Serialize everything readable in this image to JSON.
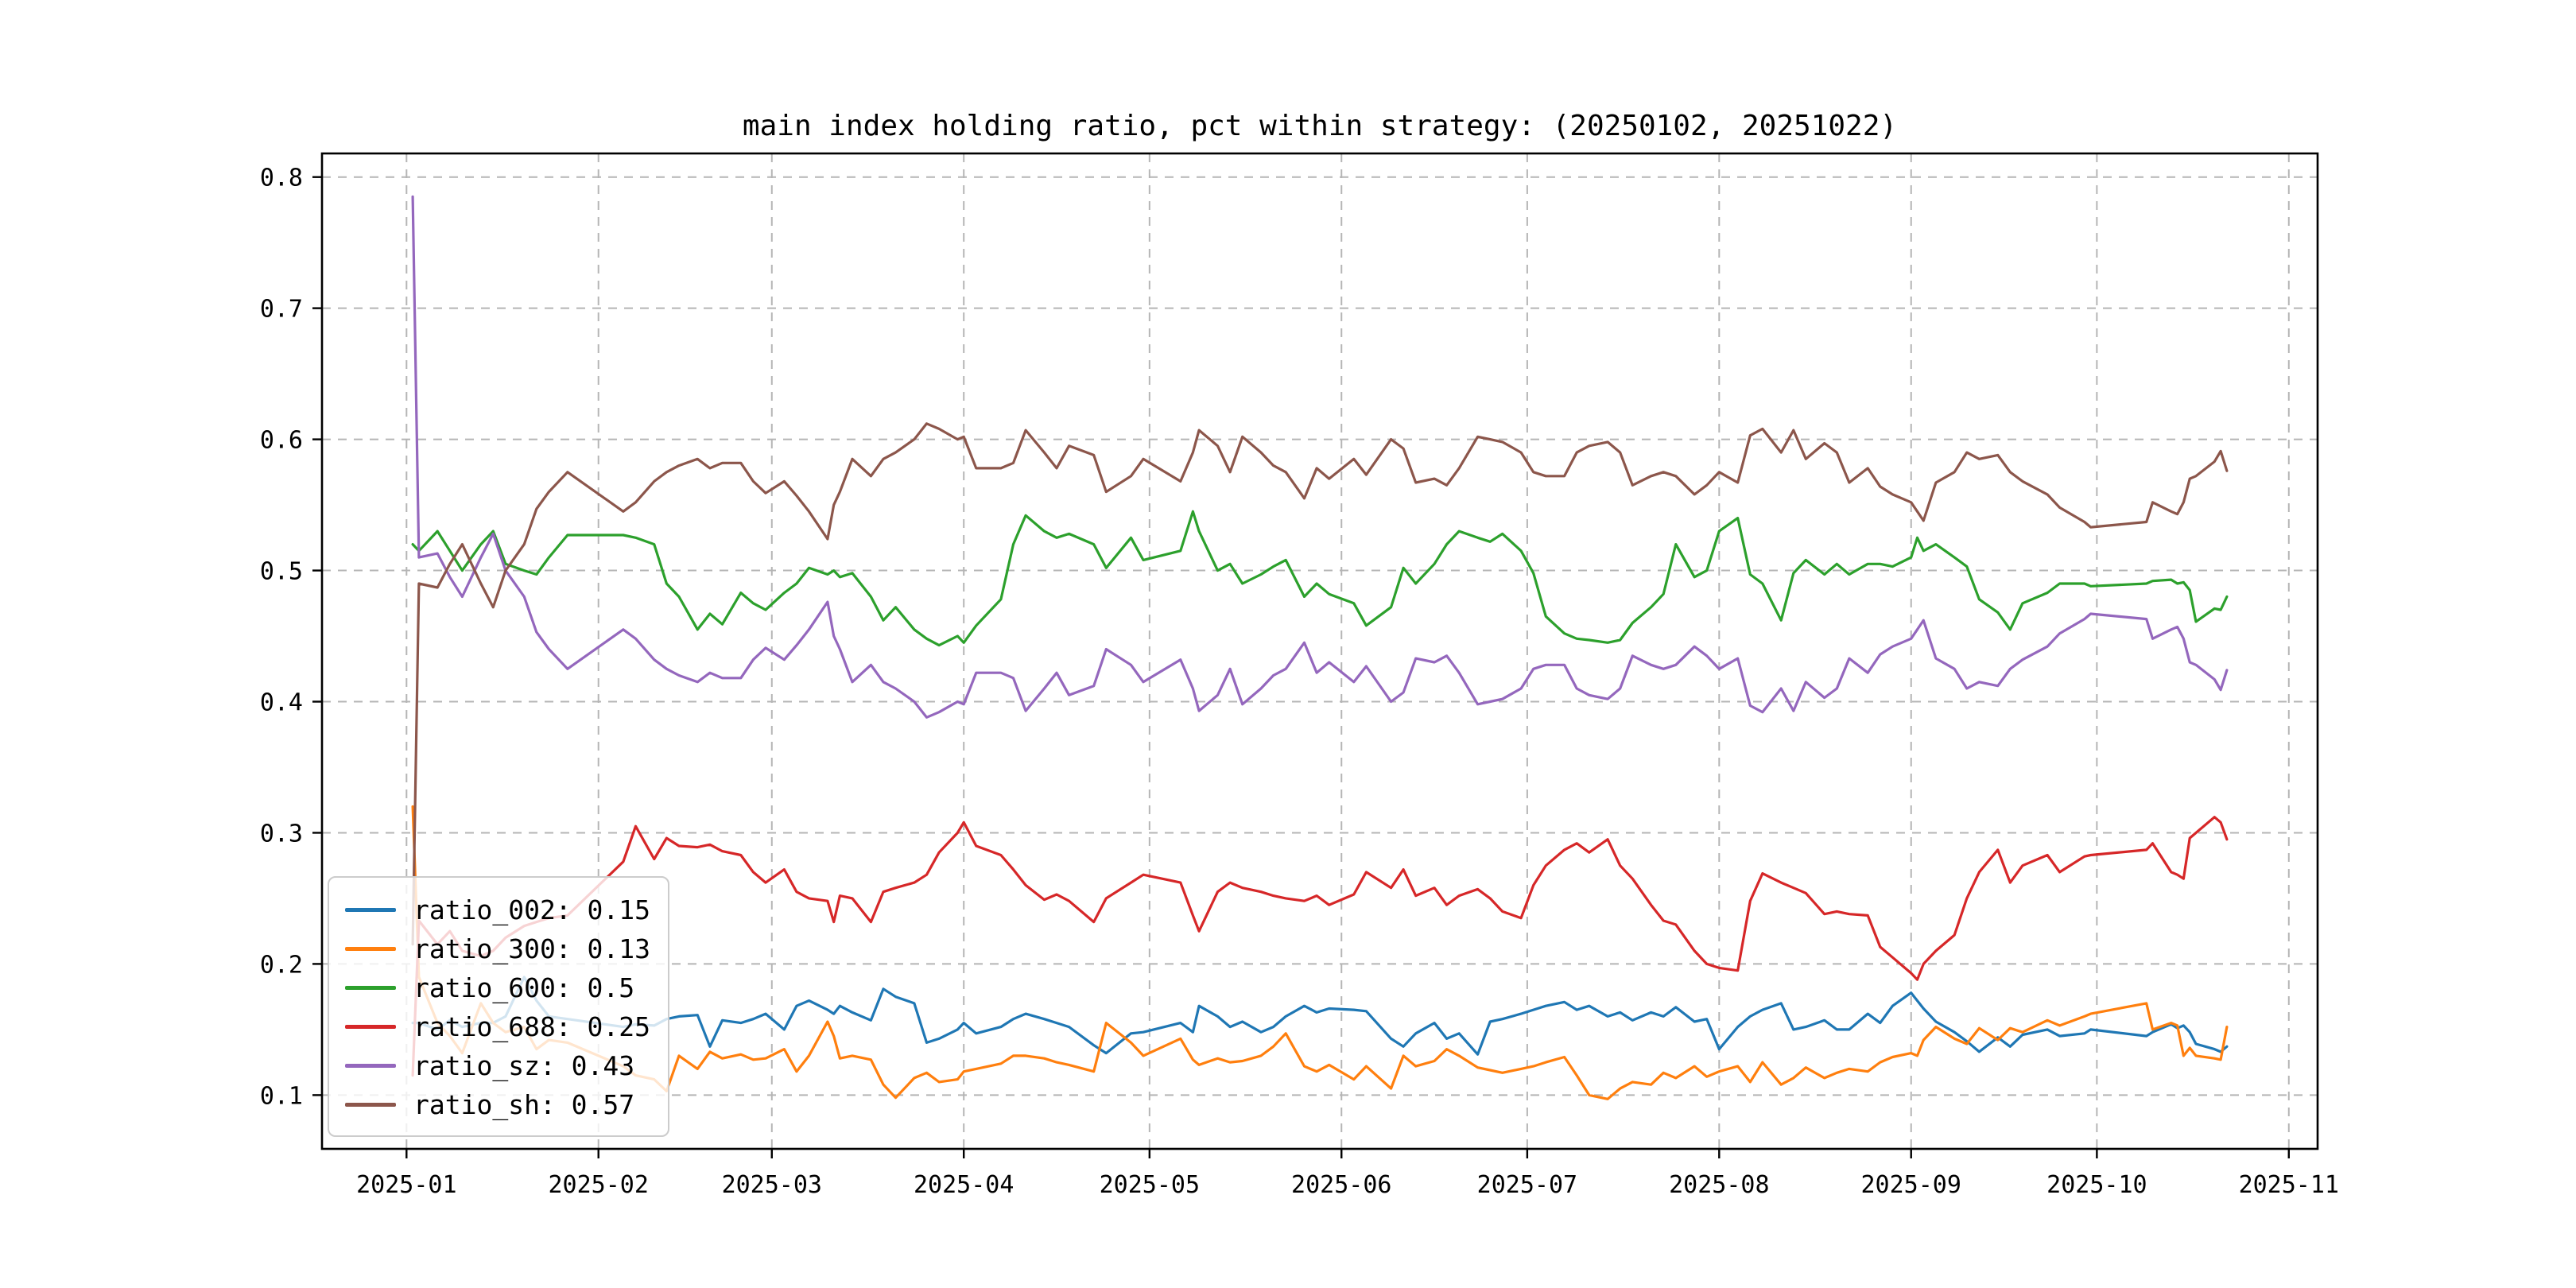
{
  "chart_data": {
    "type": "line",
    "title": "main index holding ratio, pct within strategy: (20250102, 20251022)",
    "background": "#ffffff",
    "grid": {
      "show": true,
      "color": "#b5b5b5",
      "style": "dashed"
    },
    "x_axis": {
      "unit": "days since 2025-01-01",
      "xlim": [
        -13.65,
        308.65
      ],
      "tick_days": [
        0,
        31,
        59,
        90,
        120,
        151,
        181,
        212,
        243,
        273,
        304
      ],
      "tick_labels": [
        "2025-01",
        "2025-02",
        "2025-03",
        "2025-04",
        "2025-05",
        "2025-06",
        "2025-07",
        "2025-08",
        "2025-09",
        "2025-10",
        "2025-11"
      ]
    },
    "y_axis": {
      "ylim": [
        0.059,
        0.818
      ],
      "tick_values": [
        0.1,
        0.2,
        0.3,
        0.4,
        0.5,
        0.6,
        0.7,
        0.8
      ],
      "tick_labels": [
        "0.1",
        "0.2",
        "0.3",
        "0.4",
        "0.5",
        "0.6",
        "0.7",
        "0.8"
      ]
    },
    "legend": {
      "position": "lower left",
      "entries": [
        {
          "label": "ratio_002: 0.15",
          "name": "ratio_002",
          "mean": 0.15,
          "color": "#1f77b4"
        },
        {
          "label": "ratio_300: 0.13",
          "name": "ratio_300",
          "mean": 0.13,
          "color": "#ff7f0e"
        },
        {
          "label": "ratio_600: 0.5",
          "name": "ratio_600",
          "mean": 0.5,
          "color": "#2ca02c"
        },
        {
          "label": "ratio_688: 0.25",
          "name": "ratio_688",
          "mean": 0.25,
          "color": "#d62728"
        },
        {
          "label": "ratio_sz: 0.43",
          "name": "ratio_sz",
          "mean": 0.43,
          "color": "#9467bd"
        },
        {
          "label": "ratio_sh: 0.57",
          "name": "ratio_sh",
          "mean": 0.57,
          "color": "#8c564b"
        }
      ]
    },
    "x_days": [
      1,
      2,
      5,
      7,
      9,
      12,
      14,
      16,
      19,
      21,
      23,
      26,
      35,
      37,
      40,
      42,
      44,
      47,
      49,
      51,
      54,
      56,
      58,
      61,
      63,
      65,
      68,
      69,
      70,
      72,
      75,
      77,
      79,
      82,
      84,
      86,
      89,
      90,
      92,
      96,
      98,
      100,
      103,
      105,
      107,
      111,
      113,
      117,
      119,
      125,
      127,
      128,
      131,
      133,
      135,
      138,
      140,
      142,
      145,
      147,
      149,
      153,
      155,
      159,
      161,
      163,
      166,
      168,
      170,
      173,
      175,
      177,
      180,
      182,
      184,
      187,
      189,
      191,
      194,
      196,
      198,
      201,
      203,
      205,
      208,
      210,
      212,
      215,
      217,
      219,
      222,
      224,
      226,
      229,
      231,
      233,
      236,
      238,
      240,
      243,
      244,
      245,
      247,
      250,
      252,
      254,
      257,
      259,
      261,
      265,
      267,
      271,
      272,
      281,
      282,
      285,
      286,
      287,
      288,
      289,
      292,
      293,
      294
    ],
    "series": [
      {
        "name": "ratio_002",
        "color": "#1f77b4",
        "values": [
          0.155,
          0.155,
          0.15,
          0.157,
          0.152,
          0.155,
          0.155,
          0.16,
          0.19,
          0.172,
          0.16,
          0.158,
          0.152,
          0.154,
          0.153,
          0.158,
          0.16,
          0.161,
          0.137,
          0.157,
          0.155,
          0.158,
          0.162,
          0.15,
          0.168,
          0.172,
          0.165,
          0.162,
          0.168,
          0.163,
          0.157,
          0.181,
          0.175,
          0.17,
          0.14,
          0.143,
          0.15,
          0.155,
          0.147,
          0.152,
          0.158,
          0.162,
          0.158,
          0.155,
          0.152,
          0.138,
          0.132,
          0.147,
          0.148,
          0.155,
          0.148,
          0.168,
          0.16,
          0.152,
          0.156,
          0.148,
          0.152,
          0.16,
          0.168,
          0.163,
          0.166,
          0.165,
          0.164,
          0.143,
          0.137,
          0.147,
          0.155,
          0.143,
          0.147,
          0.131,
          0.156,
          0.158,
          0.162,
          0.165,
          0.168,
          0.171,
          0.165,
          0.168,
          0.16,
          0.163,
          0.157,
          0.163,
          0.16,
          0.167,
          0.156,
          0.158,
          0.135,
          0.152,
          0.16,
          0.165,
          0.17,
          0.15,
          0.152,
          0.157,
          0.15,
          0.15,
          0.162,
          0.155,
          0.168,
          0.178,
          0.172,
          0.166,
          0.156,
          0.148,
          0.141,
          0.133,
          0.144,
          0.137,
          0.146,
          0.15,
          0.145,
          0.147,
          0.15,
          0.145,
          0.148,
          0.154,
          0.151,
          0.153,
          0.148,
          0.139,
          0.135,
          0.133,
          0.137
        ]
      },
      {
        "name": "ratio_300",
        "color": "#ff7f0e",
        "values": [
          0.32,
          0.19,
          0.155,
          0.145,
          0.132,
          0.17,
          0.155,
          0.148,
          0.152,
          0.135,
          0.142,
          0.14,
          0.122,
          0.115,
          0.112,
          0.103,
          0.13,
          0.12,
          0.133,
          0.128,
          0.131,
          0.127,
          0.128,
          0.135,
          0.118,
          0.13,
          0.156,
          0.145,
          0.128,
          0.13,
          0.127,
          0.108,
          0.098,
          0.113,
          0.117,
          0.11,
          0.112,
          0.118,
          0.12,
          0.124,
          0.13,
          0.13,
          0.128,
          0.125,
          0.123,
          0.118,
          0.155,
          0.14,
          0.13,
          0.143,
          0.127,
          0.123,
          0.128,
          0.125,
          0.126,
          0.13,
          0.137,
          0.147,
          0.122,
          0.118,
          0.123,
          0.112,
          0.122,
          0.105,
          0.13,
          0.122,
          0.126,
          0.135,
          0.13,
          0.121,
          0.119,
          0.117,
          0.12,
          0.122,
          0.125,
          0.129,
          0.115,
          0.1,
          0.097,
          0.105,
          0.11,
          0.108,
          0.117,
          0.113,
          0.122,
          0.114,
          0.118,
          0.122,
          0.11,
          0.125,
          0.108,
          0.113,
          0.121,
          0.113,
          0.117,
          0.12,
          0.118,
          0.125,
          0.129,
          0.132,
          0.13,
          0.142,
          0.152,
          0.143,
          0.139,
          0.151,
          0.142,
          0.151,
          0.148,
          0.157,
          0.153,
          0.16,
          0.162,
          0.17,
          0.15,
          0.155,
          0.153,
          0.13,
          0.136,
          0.13,
          0.128,
          0.127,
          0.152
        ]
      },
      {
        "name": "ratio_600",
        "color": "#2ca02c",
        "values": [
          0.52,
          0.515,
          0.53,
          0.515,
          0.5,
          0.52,
          0.53,
          0.505,
          0.5,
          0.497,
          0.51,
          0.527,
          0.527,
          0.525,
          0.52,
          0.49,
          0.48,
          0.455,
          0.467,
          0.459,
          0.483,
          0.475,
          0.47,
          0.483,
          0.49,
          0.502,
          0.497,
          0.5,
          0.495,
          0.498,
          0.48,
          0.462,
          0.472,
          0.455,
          0.448,
          0.443,
          0.45,
          0.445,
          0.458,
          0.478,
          0.52,
          0.542,
          0.53,
          0.525,
          0.528,
          0.52,
          0.502,
          0.525,
          0.508,
          0.515,
          0.545,
          0.53,
          0.5,
          0.505,
          0.49,
          0.497,
          0.503,
          0.508,
          0.48,
          0.49,
          0.482,
          0.475,
          0.458,
          0.472,
          0.502,
          0.49,
          0.505,
          0.52,
          0.53,
          0.525,
          0.522,
          0.528,
          0.515,
          0.498,
          0.465,
          0.452,
          0.448,
          0.447,
          0.445,
          0.447,
          0.46,
          0.472,
          0.482,
          0.52,
          0.495,
          0.5,
          0.53,
          0.54,
          0.497,
          0.49,
          0.462,
          0.498,
          0.508,
          0.497,
          0.505,
          0.497,
          0.505,
          0.505,
          0.503,
          0.51,
          0.525,
          0.515,
          0.52,
          0.51,
          0.503,
          0.478,
          0.468,
          0.455,
          0.475,
          0.483,
          0.49,
          0.49,
          0.488,
          0.49,
          0.492,
          0.493,
          0.49,
          0.491,
          0.485,
          0.461,
          0.471,
          0.47,
          0.48
        ]
      },
      {
        "name": "ratio_688",
        "color": "#d62728",
        "values": [
          0.115,
          0.233,
          0.215,
          0.225,
          0.21,
          0.206,
          0.21,
          0.22,
          0.229,
          0.232,
          0.235,
          0.237,
          0.278,
          0.305,
          0.28,
          0.296,
          0.29,
          0.289,
          0.291,
          0.286,
          0.283,
          0.27,
          0.262,
          0.272,
          0.255,
          0.25,
          0.248,
          0.232,
          0.252,
          0.25,
          0.232,
          0.255,
          0.258,
          0.262,
          0.268,
          0.285,
          0.3,
          0.308,
          0.29,
          0.283,
          0.272,
          0.26,
          0.249,
          0.253,
          0.248,
          0.232,
          0.25,
          0.262,
          0.268,
          0.262,
          0.237,
          0.225,
          0.255,
          0.262,
          0.258,
          0.255,
          0.252,
          0.25,
          0.248,
          0.252,
          0.245,
          0.253,
          0.27,
          0.258,
          0.272,
          0.252,
          0.258,
          0.245,
          0.252,
          0.257,
          0.25,
          0.24,
          0.235,
          0.26,
          0.275,
          0.287,
          0.292,
          0.285,
          0.295,
          0.275,
          0.265,
          0.245,
          0.233,
          0.23,
          0.21,
          0.2,
          0.197,
          0.195,
          0.248,
          0.269,
          0.262,
          0.258,
          0.254,
          0.238,
          0.24,
          0.238,
          0.237,
          0.213,
          0.205,
          0.193,
          0.188,
          0.2,
          0.21,
          0.222,
          0.25,
          0.27,
          0.287,
          0.262,
          0.275,
          0.283,
          0.27,
          0.282,
          0.283,
          0.287,
          0.292,
          0.27,
          0.268,
          0.265,
          0.296,
          0.3,
          0.312,
          0.308,
          0.295
        ]
      },
      {
        "name": "ratio_sz",
        "color": "#9467bd",
        "values": [
          0.785,
          0.51,
          0.513,
          0.495,
          0.48,
          0.51,
          0.528,
          0.5,
          0.48,
          0.453,
          0.44,
          0.425,
          0.455,
          0.448,
          0.432,
          0.425,
          0.42,
          0.415,
          0.422,
          0.418,
          0.418,
          0.432,
          0.441,
          0.432,
          0.443,
          0.455,
          0.476,
          0.45,
          0.44,
          0.415,
          0.428,
          0.415,
          0.41,
          0.4,
          0.388,
          0.392,
          0.4,
          0.398,
          0.422,
          0.422,
          0.418,
          0.393,
          0.41,
          0.422,
          0.405,
          0.412,
          0.44,
          0.428,
          0.415,
          0.432,
          0.41,
          0.393,
          0.405,
          0.425,
          0.398,
          0.41,
          0.42,
          0.425,
          0.445,
          0.422,
          0.43,
          0.415,
          0.427,
          0.4,
          0.407,
          0.433,
          0.43,
          0.435,
          0.422,
          0.398,
          0.4,
          0.402,
          0.41,
          0.425,
          0.428,
          0.428,
          0.41,
          0.405,
          0.402,
          0.41,
          0.435,
          0.428,
          0.425,
          0.428,
          0.442,
          0.435,
          0.425,
          0.433,
          0.397,
          0.392,
          0.41,
          0.393,
          0.415,
          0.403,
          0.41,
          0.433,
          0.422,
          0.436,
          0.442,
          0.448,
          0.455,
          0.462,
          0.433,
          0.425,
          0.41,
          0.415,
          0.412,
          0.425,
          0.432,
          0.442,
          0.452,
          0.463,
          0.467,
          0.463,
          0.448,
          0.455,
          0.457,
          0.448,
          0.43,
          0.428,
          0.417,
          0.409,
          0.424
        ]
      },
      {
        "name": "ratio_sh",
        "color": "#8c564b",
        "values": [
          0.215,
          0.49,
          0.487,
          0.505,
          0.52,
          0.49,
          0.472,
          0.5,
          0.52,
          0.547,
          0.56,
          0.575,
          0.545,
          0.552,
          0.568,
          0.575,
          0.58,
          0.585,
          0.578,
          0.582,
          0.582,
          0.568,
          0.559,
          0.568,
          0.557,
          0.545,
          0.524,
          0.55,
          0.56,
          0.585,
          0.572,
          0.585,
          0.59,
          0.6,
          0.612,
          0.608,
          0.6,
          0.602,
          0.578,
          0.578,
          0.582,
          0.607,
          0.59,
          0.578,
          0.595,
          0.588,
          0.56,
          0.572,
          0.585,
          0.568,
          0.59,
          0.607,
          0.595,
          0.575,
          0.602,
          0.59,
          0.58,
          0.575,
          0.555,
          0.578,
          0.57,
          0.585,
          0.573,
          0.6,
          0.593,
          0.567,
          0.57,
          0.565,
          0.578,
          0.602,
          0.6,
          0.598,
          0.59,
          0.575,
          0.572,
          0.572,
          0.59,
          0.595,
          0.598,
          0.59,
          0.565,
          0.572,
          0.575,
          0.572,
          0.558,
          0.565,
          0.575,
          0.567,
          0.603,
          0.608,
          0.59,
          0.607,
          0.585,
          0.597,
          0.59,
          0.567,
          0.578,
          0.564,
          0.558,
          0.552,
          0.545,
          0.538,
          0.567,
          0.575,
          0.59,
          0.585,
          0.588,
          0.575,
          0.568,
          0.558,
          0.548,
          0.537,
          0.533,
          0.537,
          0.552,
          0.545,
          0.543,
          0.552,
          0.57,
          0.572,
          0.583,
          0.591,
          0.576
        ]
      }
    ]
  }
}
